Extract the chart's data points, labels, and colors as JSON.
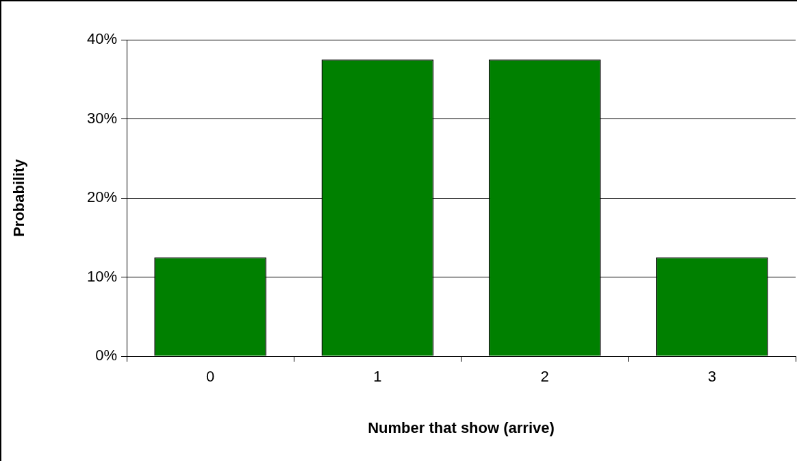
{
  "chart_data": {
    "type": "bar",
    "xlabel": "Number that show (arrive)",
    "ylabel": "Probability",
    "categories": [
      "0",
      "1",
      "2",
      "3"
    ],
    "values": [
      12.5,
      37.5,
      37.5,
      12.5
    ],
    "color": "#008000",
    "ylim": [
      0,
      40
    ],
    "yticks": [
      {
        "value": 0,
        "label": "0%"
      },
      {
        "value": 10,
        "label": "10%"
      },
      {
        "value": 20,
        "label": "20%"
      },
      {
        "value": 30,
        "label": "30%"
      },
      {
        "value": 40,
        "label": "40%"
      }
    ],
    "grid": "y",
    "legend": false
  }
}
